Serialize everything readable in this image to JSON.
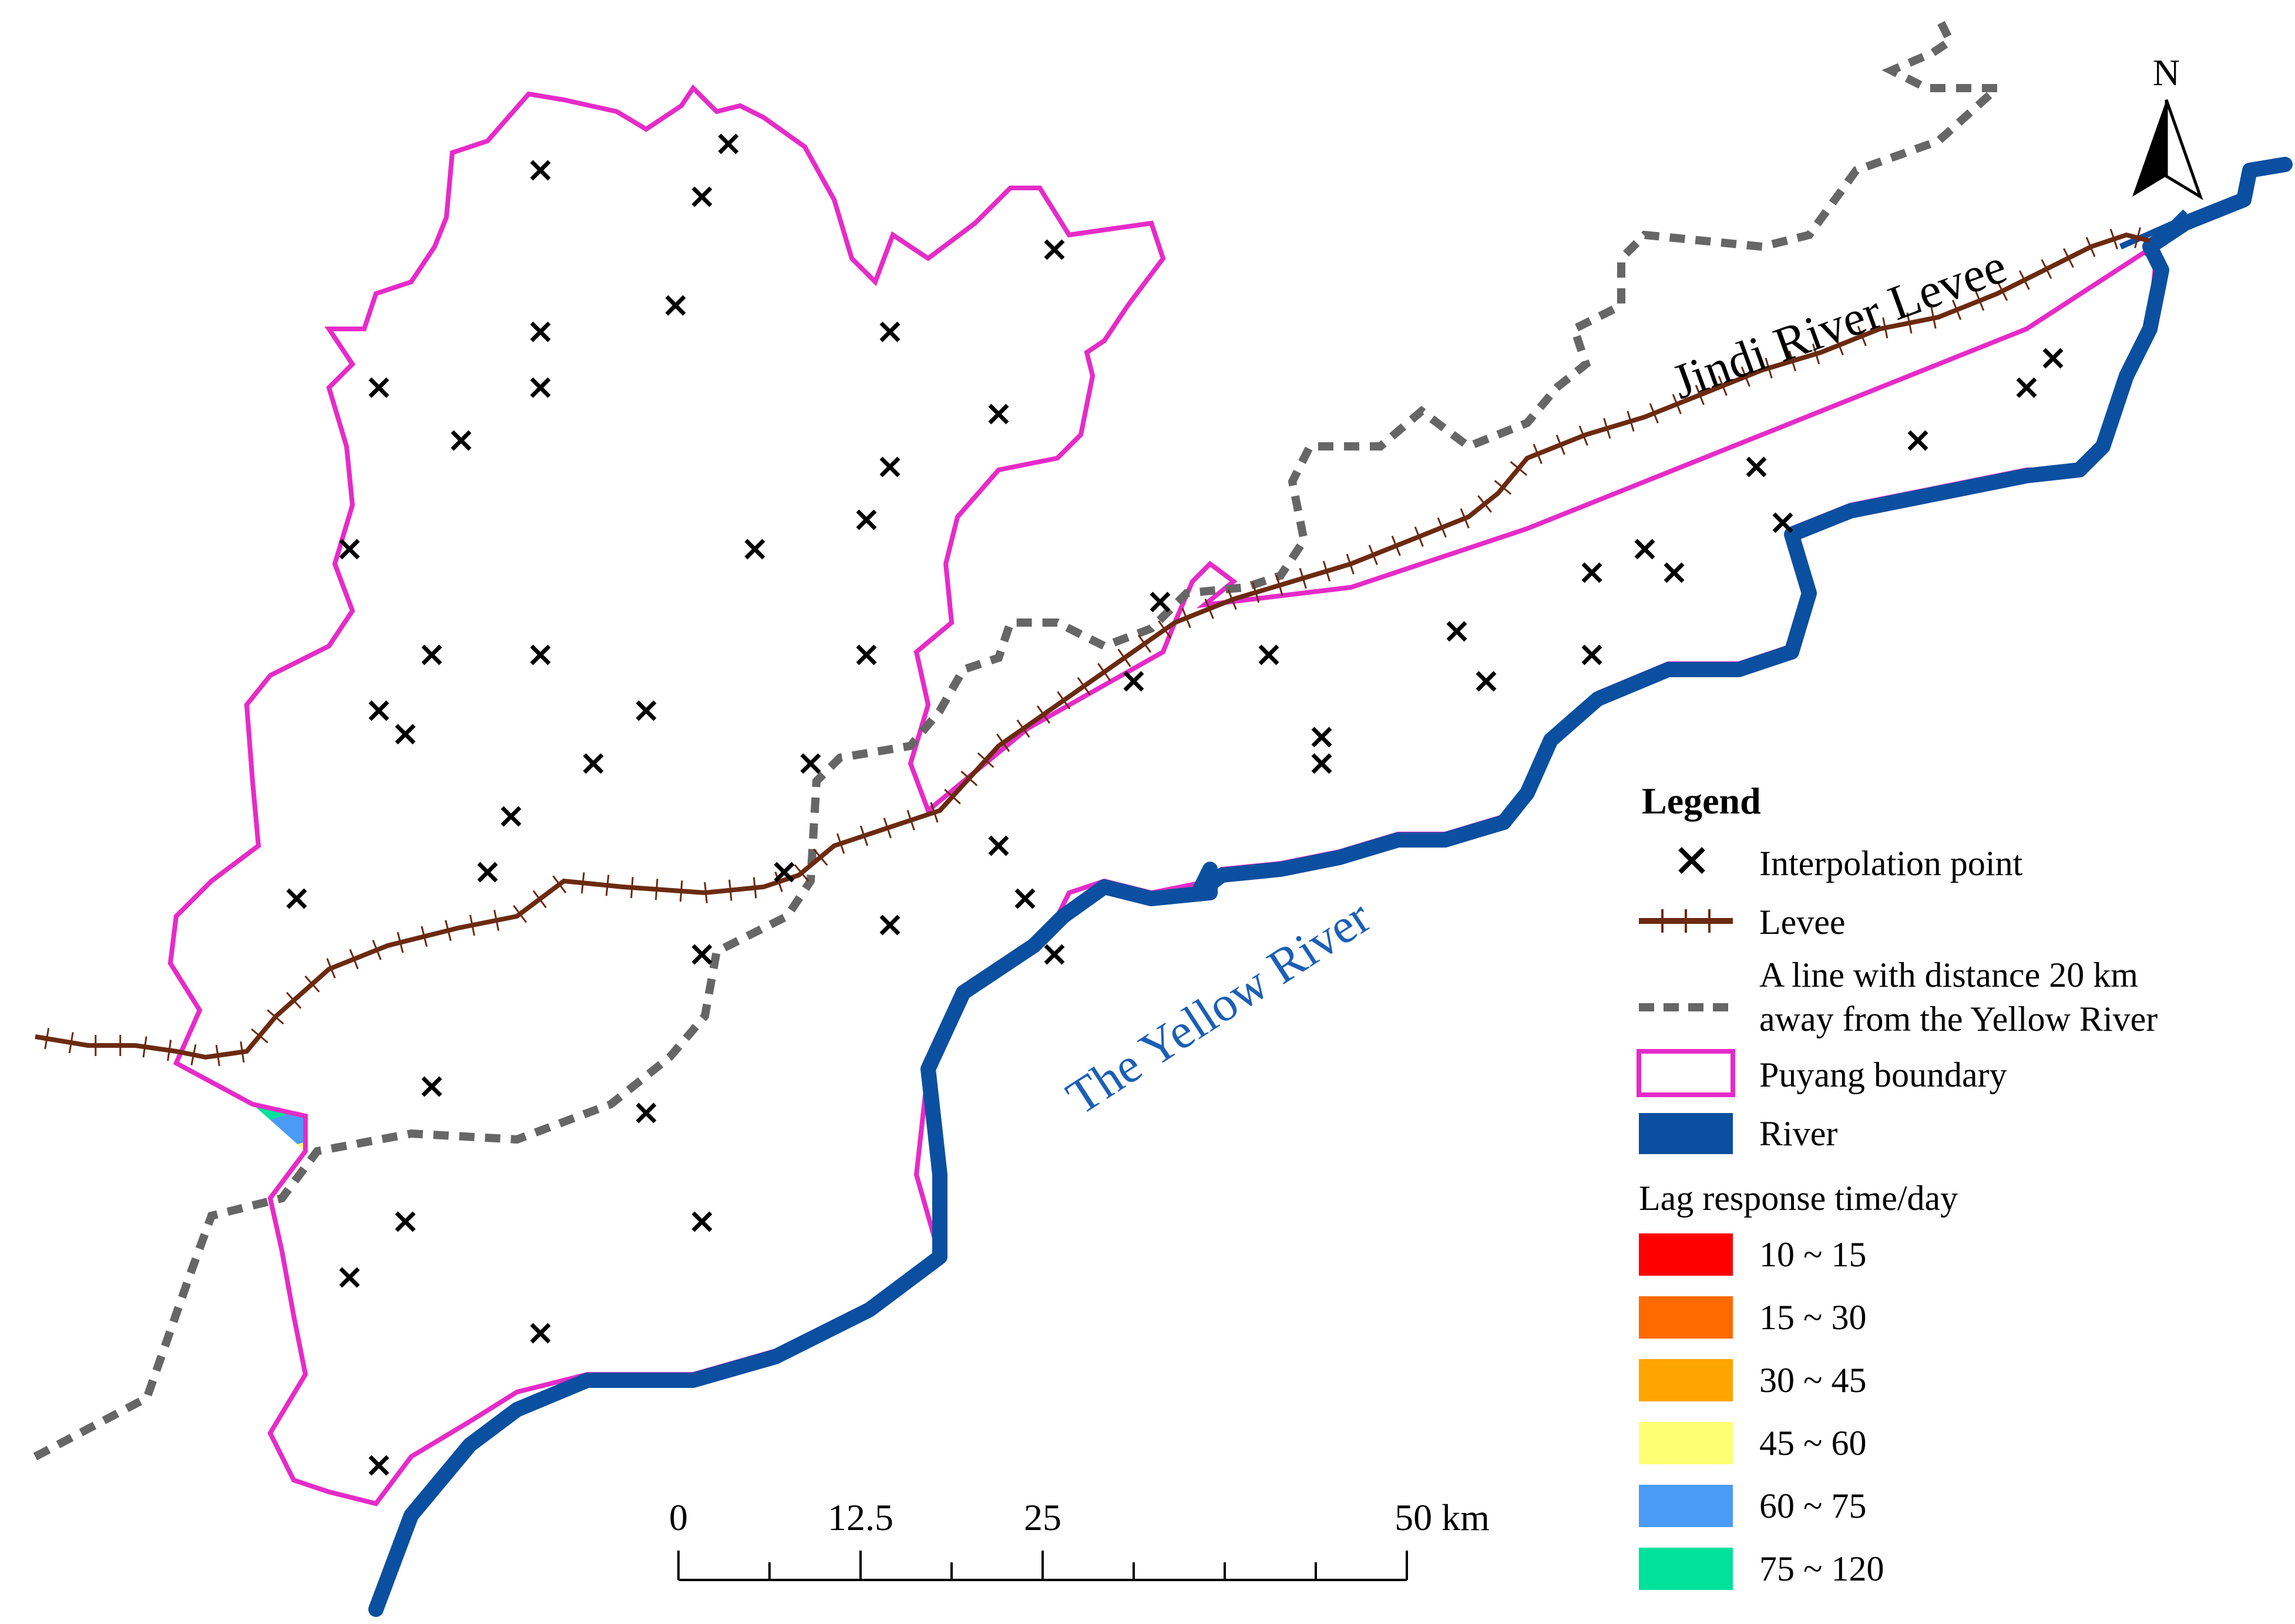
{
  "labels": {
    "north": "N",
    "jindi_levee": "Jindi River Levee",
    "yellow_river": "The Yellow River"
  },
  "legend": {
    "title": "Legend",
    "interpolation_point": "Interpolation point",
    "levee": "Levee",
    "buffer_line_1": "A line with distance 20 km",
    "buffer_line_2": "away from the Yellow River",
    "boundary": "Puyang boundary",
    "river": "River",
    "lag_title": "Lag response time/day",
    "classes": [
      {
        "label": "10 ~ 15",
        "color": "#ff0000"
      },
      {
        "label": "15 ~ 30",
        "color": "#ff6a00"
      },
      {
        "label": "30 ~ 45",
        "color": "#ffa500"
      },
      {
        "label": "45 ~ 60",
        "color": "#ffff73"
      },
      {
        "label": "60 ~ 75",
        "color": "#4a9bf5"
      },
      {
        "label": "75 ~ 120",
        "color": "#00e19b"
      }
    ]
  },
  "scale_bar": {
    "ticks": [
      "0",
      "12.5",
      "25",
      "50 km"
    ]
  },
  "colors": {
    "boundary": "#e62bc8",
    "levee": "#6b2a10",
    "river": "#0b4fa0",
    "buffer": "#666666",
    "river_label": "#1b5fb5"
  }
}
